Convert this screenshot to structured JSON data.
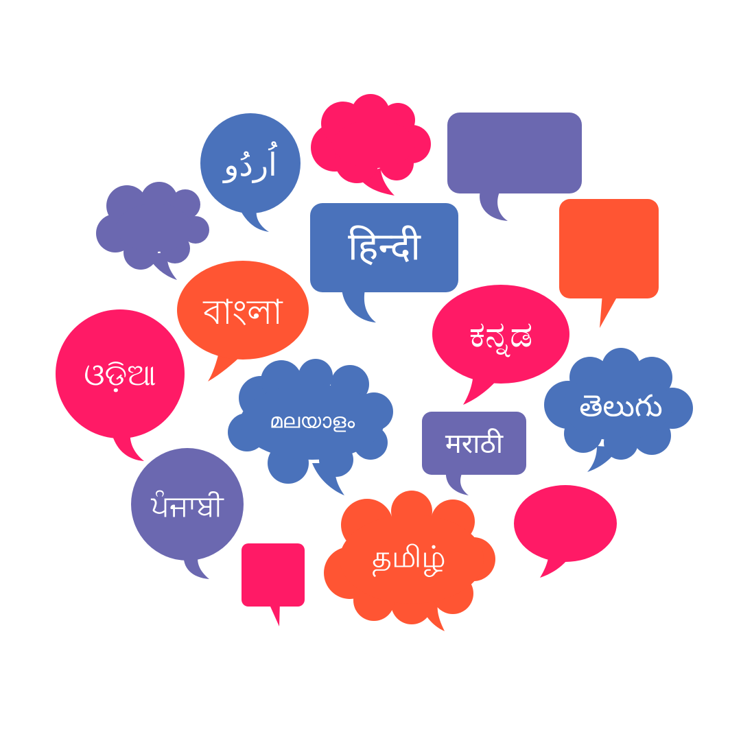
{
  "colors": {
    "blue": "#4a72bb",
    "purple": "#6b68b0",
    "pink": "#ff1a66",
    "orange": "#ff5533",
    "text": "#ffffff",
    "background": "#ffffff"
  },
  "labels": {
    "urdu": "اُردُو",
    "hindi": "हिन्दी",
    "bangla": "বাংলা",
    "kannada": "ಕನ್ನಡ",
    "odia": "ଓଡ଼ିଆ",
    "malayalam": "മലയാളം",
    "marathi": "मराठी",
    "telugu": "తెలుగు",
    "punjabi": "ਪੰਜਾਬੀ",
    "tamil": "தமிழ்"
  }
}
